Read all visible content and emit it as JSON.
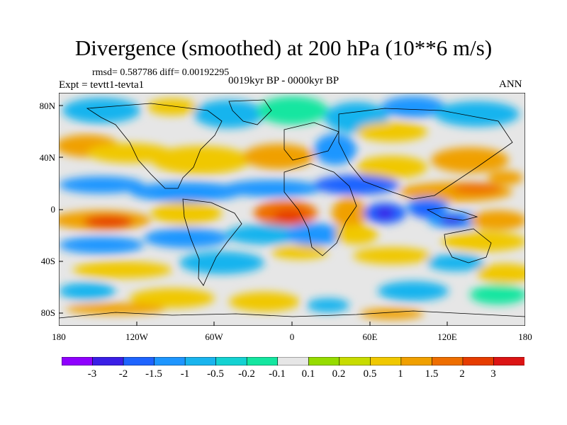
{
  "title": "Divergence (smoothed) at 200 hPa (10**6 m/s)",
  "stats": "rmsd= 0.587786 diff= 0.00192295",
  "experiment": "Expt = tevtt1-tevta1",
  "period": "0019kyr BP - 0000kyr BP",
  "season": "ANN",
  "lat_labels": [
    "80N",
    "40N",
    "0",
    "40S",
    "80S"
  ],
  "lon_labels": [
    "180",
    "120W",
    "60W",
    "0",
    "60E",
    "120E",
    "180"
  ],
  "colorbar": {
    "labels": [
      "-3",
      "-2",
      "-1.5",
      "-1",
      "-0.5",
      "-0.2",
      "-0.1",
      "0.1",
      "0.2",
      "0.5",
      "1",
      "1.5",
      "2",
      "3"
    ],
    "colors": [
      "#8f00ff",
      "#3a1ee6",
      "#1e64ff",
      "#1e96ff",
      "#19b4ee",
      "#14d2d2",
      "#14e6a0",
      "#e6e6e6",
      "#96dc00",
      "#c8dc00",
      "#f0c800",
      "#f0a000",
      "#ee6e00",
      "#e63c00",
      "#dc1414"
    ]
  }
}
